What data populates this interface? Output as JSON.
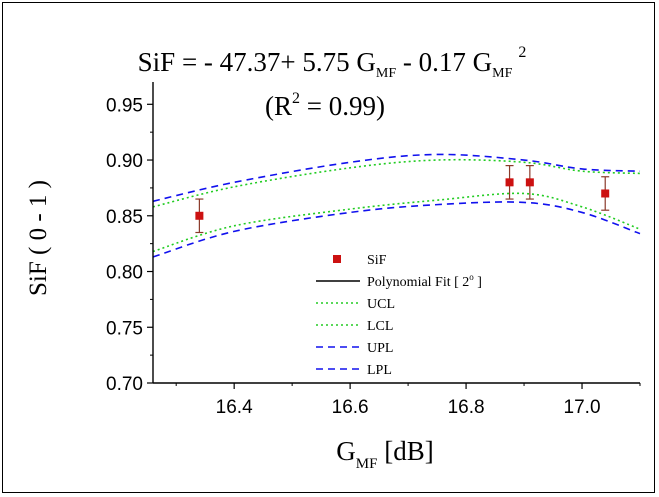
{
  "chart_data": {
    "type": "scatter",
    "title": {
      "lhs": "SiF",
      "eq": " = - 47.37+ 5.75 G",
      "sub1": "MF",
      "mid": " - 0.17 G",
      "sub2": "MF",
      "sup": "2"
    },
    "subtitle": {
      "pre": "(R",
      "sup": "2",
      "post": " = 0.99)"
    },
    "xlabel": {
      "main": "G",
      "sub": "MF",
      "unit": " [dB]"
    },
    "ylabel": "SiF ( 0 - 1 )",
    "xlim": [
      16.26,
      17.1
    ],
    "ylim": [
      0.7,
      0.97
    ],
    "x_ticks": [
      "16.4",
      "16.6",
      "16.8",
      "17.0"
    ],
    "y_ticks": [
      "0.70",
      "0.75",
      "0.80",
      "0.85",
      "0.90",
      "0.95"
    ],
    "points": {
      "name": "SiF",
      "x": [
        16.34,
        16.875,
        16.91,
        17.04
      ],
      "y": [
        0.85,
        0.88,
        0.88,
        0.87
      ],
      "err": [
        0.015,
        0.015,
        0.015,
        0.015
      ]
    },
    "fit": {
      "a": -47.37,
      "b": 5.75,
      "c": -0.17
    },
    "bands": {
      "ucl": {
        "x": [
          16.26,
          16.4,
          16.6,
          16.75,
          16.9,
          17.0,
          17.1
        ],
        "y": [
          0.858,
          0.876,
          0.893,
          0.9,
          0.898,
          0.89,
          0.888
        ]
      },
      "lcl": {
        "x": [
          16.26,
          16.4,
          16.6,
          16.75,
          16.9,
          17.0,
          17.1
        ],
        "y": [
          0.818,
          0.841,
          0.856,
          0.864,
          0.87,
          0.858,
          0.838
        ]
      },
      "upl": {
        "x": [
          16.26,
          16.4,
          16.6,
          16.75,
          16.9,
          17.0,
          17.1
        ],
        "y": [
          0.863,
          0.88,
          0.898,
          0.905,
          0.9,
          0.892,
          0.89
        ]
      },
      "lpl": {
        "x": [
          16.26,
          16.4,
          16.6,
          16.75,
          16.9,
          17.0,
          17.1
        ],
        "y": [
          0.813,
          0.836,
          0.853,
          0.86,
          0.862,
          0.853,
          0.834
        ]
      }
    },
    "legend": [
      {
        "label": "SiF",
        "style": "marker"
      },
      {
        "label": "Polynomial Fit [ 2",
        "sup": "o",
        "tail": " ]",
        "style": "solid"
      },
      {
        "label": "UCL",
        "style": "dotted-green"
      },
      {
        "label": "LCL",
        "style": "dotted-green"
      },
      {
        "label": "UPL",
        "style": "dashed-blue"
      },
      {
        "label": "LPL",
        "style": "dashed-blue"
      }
    ],
    "legend_placement": "bottom-center",
    "grid": false,
    "colors": {
      "point": "#cc1111",
      "fit": "#000000",
      "cl": "#22cc22",
      "pl": "#1111ee"
    }
  }
}
